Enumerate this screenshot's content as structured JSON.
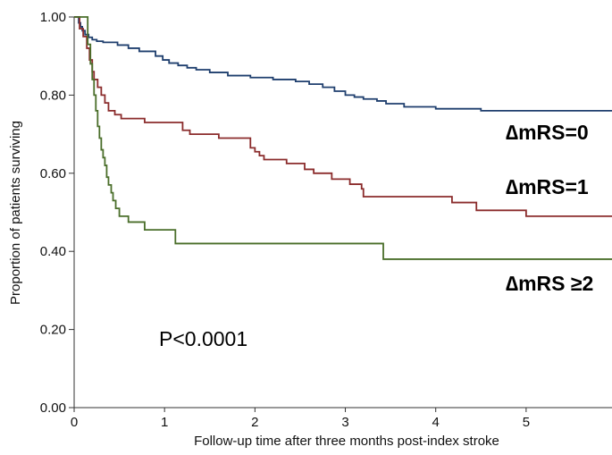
{
  "chart_data": {
    "type": "line",
    "step": true,
    "xlabel": "Follow-up time after three months post-index stroke",
    "ylabel": "Proportion of patients surviving",
    "xlim": [
      0,
      5.95
    ],
    "ylim": [
      0,
      1.0
    ],
    "x_ticks": [
      0,
      1,
      2,
      3,
      4,
      5
    ],
    "x_tick_labels": [
      "0",
      "1",
      "2",
      "3",
      "4",
      "5"
    ],
    "y_ticks": [
      0,
      0.2,
      0.4,
      0.6,
      0.8,
      1.0
    ],
    "y_tick_labels": [
      "0.00",
      "0.20",
      "0.40",
      "0.60",
      "0.80",
      "1.00"
    ],
    "grid": false,
    "annotation": "P<0.0001",
    "series": [
      {
        "name": "∆mRS=0",
        "color": "#1f3f6e",
        "x": [
          0,
          0.05,
          0.07,
          0.09,
          0.12,
          0.16,
          0.2,
          0.25,
          0.32,
          0.48,
          0.6,
          0.72,
          0.9,
          0.98,
          1.05,
          1.15,
          1.25,
          1.35,
          1.5,
          1.7,
          1.95,
          2.2,
          2.45,
          2.6,
          2.75,
          2.88,
          3.0,
          3.1,
          3.2,
          3.35,
          3.45,
          3.65,
          4.0,
          4.5,
          5.95
        ],
        "y": [
          1.0,
          0.985,
          0.975,
          0.965,
          0.955,
          0.948,
          0.942,
          0.938,
          0.935,
          0.928,
          0.92,
          0.912,
          0.9,
          0.89,
          0.882,
          0.876,
          0.87,
          0.865,
          0.858,
          0.85,
          0.845,
          0.84,
          0.835,
          0.828,
          0.82,
          0.81,
          0.8,
          0.795,
          0.79,
          0.785,
          0.778,
          0.77,
          0.765,
          0.76,
          0.76
        ]
      },
      {
        "name": "∆mRS=1",
        "color": "#8b2c2c",
        "x": [
          0,
          0.06,
          0.1,
          0.14,
          0.17,
          0.2,
          0.22,
          0.26,
          0.3,
          0.34,
          0.38,
          0.45,
          0.52,
          0.78,
          1.2,
          1.28,
          1.6,
          1.95,
          2.0,
          2.05,
          2.1,
          2.35,
          2.55,
          2.65,
          2.85,
          3.05,
          3.18,
          3.2,
          4.18,
          4.45,
          5.0,
          5.95
        ],
        "y": [
          1.0,
          0.97,
          0.95,
          0.92,
          0.89,
          0.86,
          0.84,
          0.82,
          0.8,
          0.78,
          0.76,
          0.75,
          0.74,
          0.73,
          0.71,
          0.7,
          0.69,
          0.665,
          0.655,
          0.645,
          0.635,
          0.625,
          0.61,
          0.6,
          0.585,
          0.572,
          0.56,
          0.54,
          0.525,
          0.505,
          0.49,
          0.49
        ]
      },
      {
        "name": "∆mRS ≥2",
        "color": "#4a6e2a",
        "x": [
          0,
          0.15,
          0.18,
          0.2,
          0.22,
          0.24,
          0.26,
          0.28,
          0.3,
          0.32,
          0.34,
          0.36,
          0.38,
          0.41,
          0.43,
          0.46,
          0.5,
          0.6,
          0.78,
          1.12,
          3.42,
          5.95
        ],
        "y": [
          1.0,
          0.93,
          0.88,
          0.84,
          0.8,
          0.76,
          0.72,
          0.69,
          0.66,
          0.64,
          0.62,
          0.59,
          0.57,
          0.55,
          0.53,
          0.51,
          0.49,
          0.475,
          0.455,
          0.42,
          0.38,
          0.38
        ]
      }
    ]
  },
  "labels": {
    "annotation": "P<0.0001",
    "xlabel": "Follow-up time after three months post-index stroke",
    "ylabel": "Proportion of patients surviving",
    "series0": "∆mRS=0",
    "series1": "∆mRS=1",
    "series2": "∆mRS ≥2"
  }
}
